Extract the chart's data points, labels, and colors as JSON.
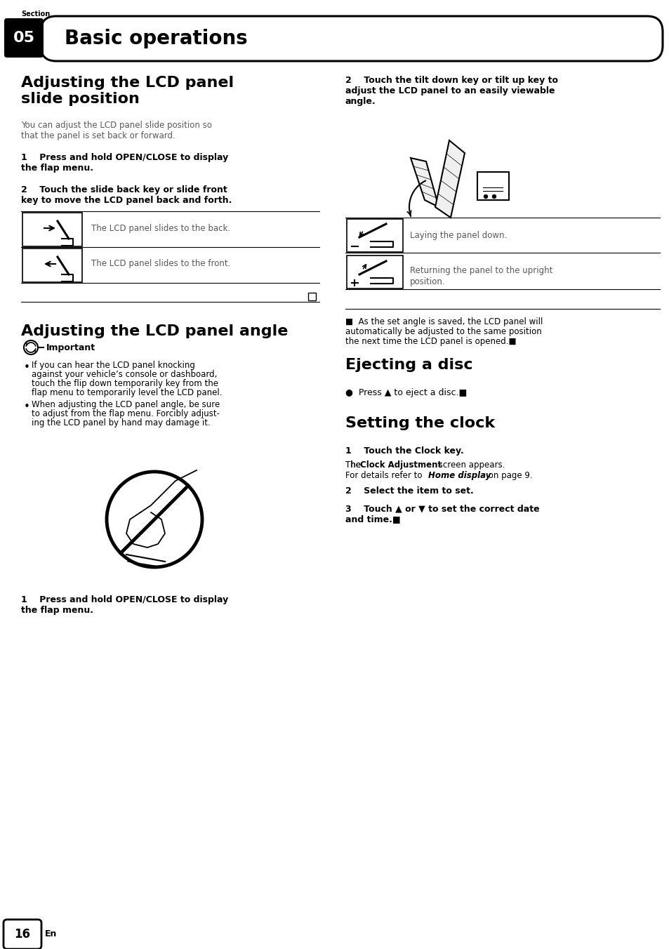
{
  "page_bg": "#ffffff",
  "section_label": "Section",
  "section_num": "05",
  "section_title": "Basic operations",
  "page_num": "16",
  "page_lang": "En",
  "col1_title_l1": "Adjusting the LCD panel",
  "col1_title_l2": "slide position",
  "col1_body_l1": "You can adjust the LCD panel slide position so",
  "col1_body_l2": "that the panel is set back or forward.",
  "col1_s1_l1": "1    Press and hold OPEN/CLOSE to display",
  "col1_s1_l2": "the flap menu.",
  "col1_s2_l1": "2    Touch the slide back key or slide front",
  "col1_s2_l2": "key to move the LCD panel back and forth.",
  "col1_icon1_text": "The LCD panel slides to the back.",
  "col1_icon2_text": "The LCD panel slides to the front.",
  "col1_angle_title": "Adjusting the LCD panel angle",
  "col1_important": "Important",
  "col1_b1_l1": "If you can hear the LCD panel knocking",
  "col1_b1_l2": "against your vehicle’s console or dashboard,",
  "col1_b1_l3": "touch the flip down temporarily key from the",
  "col1_b1_l4": "flap menu to temporarily level the LCD panel.",
  "col1_b2_l1": "When adjusting the LCD panel angle, be sure",
  "col1_b2_l2": "to adjust from the flap menu. Forcibly adjust-",
  "col1_b2_l3": "ing the LCD panel by hand may damage it.",
  "col1_as1_l1": "1    Press and hold OPEN/CLOSE to display",
  "col1_as1_l2": "the flap menu.",
  "col2_s2_l1": "2    Touch the tilt down key or tilt up key to",
  "col2_s2_l2": "adjust the LCD panel to an easily viewable",
  "col2_s2_l3": "angle.",
  "col2_icon1_text": "Laying the panel down.",
  "col2_icon2_l1": "Returning the panel to the upright",
  "col2_icon2_l2": "position.",
  "col2_note_l1": "■  As the set angle is saved, the LCD panel will",
  "col2_note_l2": "automatically be adjusted to the same position",
  "col2_note_l3": "the next time the LCD panel is opened.■",
  "col2_eject_title": "Ejecting a disc",
  "col2_eject_text": "●  Press ▲ to eject a disc.■",
  "col2_clock_title": "Setting the clock",
  "col2_ck1": "1    Touch the Clock key.",
  "col2_ck1b1": "The ",
  "col2_ck1b2": "Clock Adjustment",
  "col2_ck1b3": " screen appears.",
  "col2_ck1c1": "For details refer to ",
  "col2_ck1c2": "Home display",
  "col2_ck1c3": " on page 9.",
  "col2_ck2": "2    Select the item to set.",
  "col2_ck3_l1": "3    Touch ▲ or ▼ to set the correct date",
  "col2_ck3_l2": "and time.■"
}
